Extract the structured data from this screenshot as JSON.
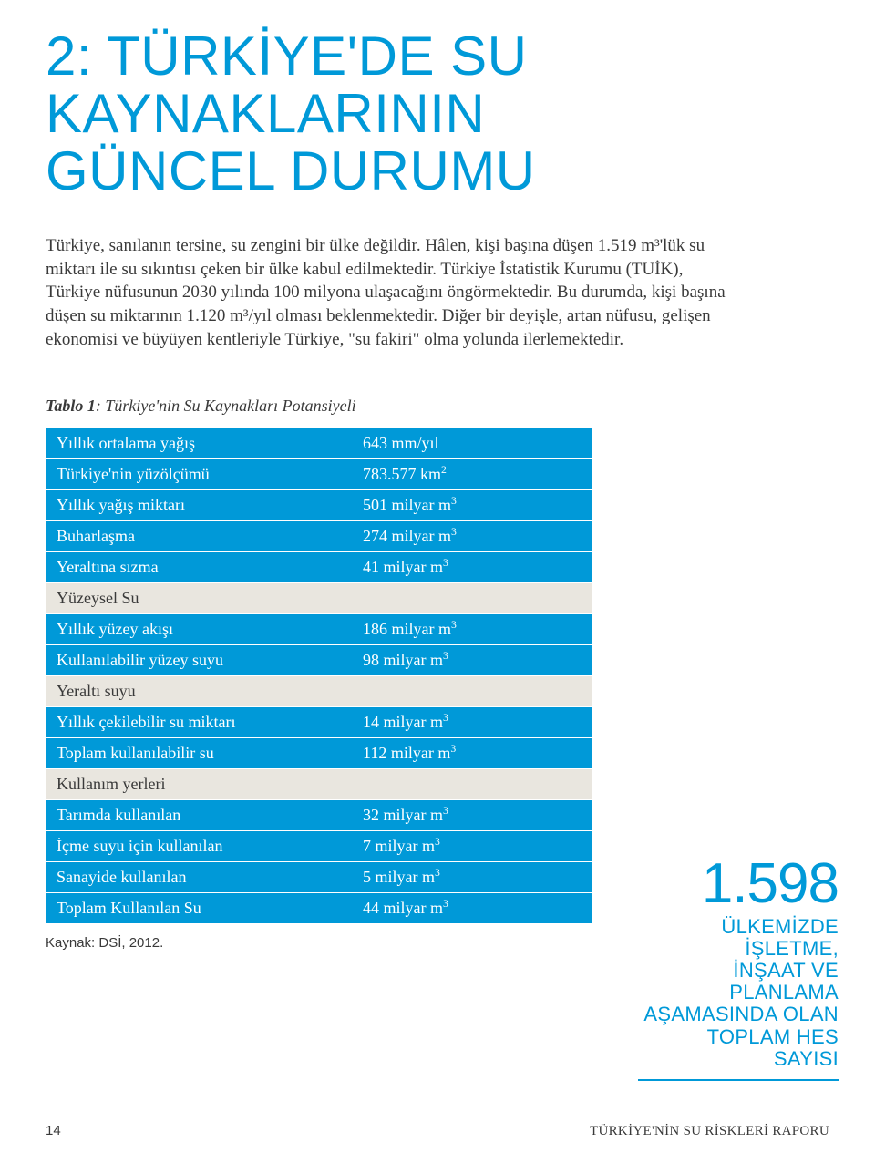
{
  "heading_line1": "2: TÜRKİYE'DE SU KAYNAKLARININ",
  "heading_line2": "GÜNCEL DURUMU",
  "paragraph": "Türkiye, sanılanın tersine, su zengini bir ülke değildir. Hâlen, kişi başına düşen 1.519 m³'lük su miktarı ile su sıkıntısı çeken bir ülke kabul edilmektedir. Türkiye İstatistik Kurumu (TUİK), Türkiye nüfusunun 2030 yılında 100 milyona ulaşacağını öngörmektedir. Bu durumda, kişi başına düşen su miktarının 1.120 m³/yıl olması beklenmektedir. Diğer bir deyişle, artan nüfusu, gelişen ekonomisi ve büyüyen kentleriyle Türkiye, \"su fakiri\" olma yolunda ilerlemektedir.",
  "table_caption_prefix": "Tablo 1",
  "table_caption_rest": ": Türkiye'nin Su Kaynakları Potansiyeli",
  "rows": [
    {
      "type": "section",
      "label": "Yıllık ortalama yağış",
      "value": "643 mm/yıl"
    },
    {
      "type": "section",
      "label": "Türkiye'nin yüzölçümü",
      "value": "783.577 km",
      "sup": "2"
    },
    {
      "type": "section",
      "label": "Yıllık yağış miktarı",
      "value": "501 milyar m",
      "sup": "3"
    },
    {
      "type": "section",
      "label": "Buharlaşma",
      "value": "274 milyar m",
      "sup": "3"
    },
    {
      "type": "section",
      "label": "Yeraltına sızma",
      "value": "41 milyar m",
      "sup": "3"
    },
    {
      "type": "row",
      "label": "Yüzeysel Su",
      "value": ""
    },
    {
      "type": "section",
      "label": "Yıllık yüzey akışı",
      "value": "186 milyar m",
      "sup": "3"
    },
    {
      "type": "section",
      "label": "Kullanılabilir yüzey suyu",
      "value": "98 milyar m",
      "sup": "3"
    },
    {
      "type": "row",
      "label": "Yeraltı suyu",
      "value": ""
    },
    {
      "type": "section",
      "label": "Yıllık çekilebilir su miktarı",
      "value": "14 milyar m",
      "sup": "3"
    },
    {
      "type": "section",
      "label": "Toplam kullanılabilir su",
      "value": "112 milyar m",
      "sup": "3"
    },
    {
      "type": "row",
      "label": "Kullanım yerleri",
      "value": ""
    },
    {
      "type": "section",
      "label": "Tarımda kullanılan",
      "value": "32 milyar m",
      "sup": "3"
    },
    {
      "type": "section",
      "label": "İçme suyu için kullanılan",
      "value": "7 milyar m",
      "sup": "3"
    },
    {
      "type": "section",
      "label": "Sanayide kullanılan",
      "value": "5 milyar m",
      "sup": "3"
    },
    {
      "type": "section",
      "label": "Toplam Kullanılan Su",
      "value": "44 milyar m",
      "sup": "3"
    }
  ],
  "source": "Kaynak: DSİ, 2012.",
  "callout_big": "1.598",
  "callout_line1": "ÜLKEMİZDE İŞLETME,",
  "callout_line2": "İNŞAAT VE PLANLAMA",
  "callout_line3": "AŞAMASINDA OLAN",
  "callout_line4": "TOPLAM HES SAYISI",
  "page_number": "14",
  "doc_title": "TÜRKİYE'NİN SU RİSKLERİ RAPORU",
  "colors": {
    "accent": "#0099d8",
    "row_bg": "#e9e6df",
    "text": "#3a3a3a"
  }
}
